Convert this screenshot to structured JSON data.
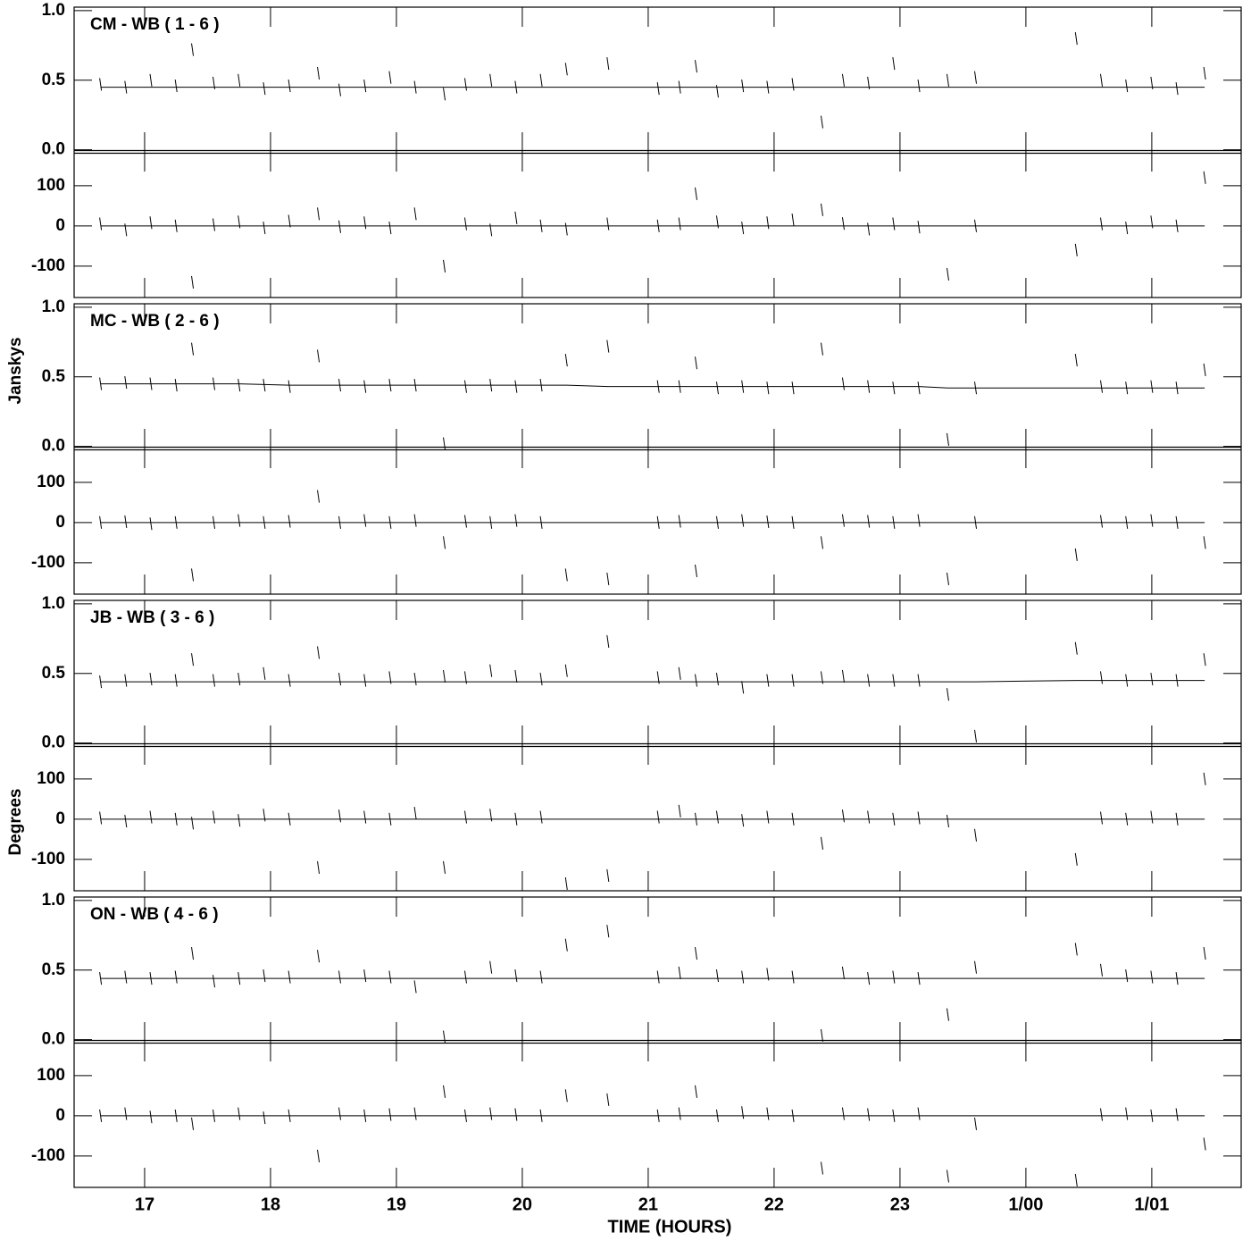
{
  "figure": {
    "xlabel": "TIME (HOURS)",
    "amp_label": "Janskys",
    "phase_label": "Degrees",
    "xlim": [
      16.44,
      25.71
    ],
    "xticks": [
      17,
      18,
      19,
      20,
      21,
      22,
      23,
      {
        "value": 24,
        "label": "1/00"
      },
      {
        "value": 25,
        "label": "1/01"
      }
    ],
    "amp_ylim": [
      -0.015,
      1.025
    ],
    "amp_yticks": [
      {
        "value": 0,
        "label": "0.0"
      },
      {
        "value": 0.5,
        "label": "0.5"
      },
      {
        "value": 1,
        "label": "1.0"
      }
    ],
    "phase_ylim": [
      -178,
      184
    ],
    "phase_yticks": [
      -100,
      0,
      100
    ]
  },
  "chart_data": [
    {
      "type": "line",
      "title": "CM - WB ( 1 - 6 )",
      "x": [
        16.65,
        16.85,
        17.05,
        17.25,
        17.38,
        17.55,
        17.75,
        17.95,
        18.15,
        18.38,
        18.55,
        18.75,
        18.95,
        19.15,
        19.38,
        19.55,
        19.75,
        19.95,
        20.15,
        20.35,
        20.68,
        21.08,
        21.25,
        21.38,
        21.55,
        21.75,
        21.95,
        22.15,
        22.38,
        22.55,
        22.75,
        22.95,
        23.15,
        23.38,
        23.6,
        24.4,
        24.6,
        24.8,
        25.0,
        25.2,
        25.42
      ],
      "amplitude": [
        0.47,
        0.45,
        0.5,
        0.46,
        0.72,
        0.48,
        0.5,
        0.44,
        0.46,
        0.55,
        0.43,
        0.46,
        0.52,
        0.45,
        0.4,
        0.47,
        0.5,
        0.45,
        0.5,
        0.58,
        0.62,
        0.44,
        0.45,
        0.6,
        0.42,
        0.46,
        0.45,
        0.47,
        0.2,
        0.5,
        0.48,
        0.62,
        0.46,
        0.5,
        0.52,
        0.8,
        0.5,
        0.46,
        0.48,
        0.44,
        0.55
      ],
      "amplitude_model": [
        0.45,
        0.45,
        0.45,
        0.45,
        0.45,
        0.45,
        0.45,
        0.45,
        0.45,
        0.45,
        0.45,
        0.45,
        0.45,
        0.45,
        0.45,
        0.45,
        0.45,
        0.45,
        0.45,
        0.45,
        0.45,
        0.45,
        0.45,
        0.45,
        0.45,
        0.45,
        0.45,
        0.45,
        0.45,
        0.45,
        0.45,
        0.45,
        0.45,
        0.45,
        0.45,
        0.45,
        0.45,
        0.45,
        0.45,
        0.45,
        0.45
      ],
      "phase": [
        5,
        -10,
        8,
        0,
        -140,
        3,
        10,
        -5,
        12,
        30,
        -2,
        8,
        -5,
        30,
        -100,
        5,
        -10,
        20,
        0,
        -8,
        5,
        0,
        5,
        80,
        10,
        -5,
        8,
        15,
        40,
        6,
        -8,
        5,
        -3,
        -120,
        0,
        -60,
        5,
        -5,
        10,
        0,
        120
      ],
      "phase_model": [
        0,
        0,
        0,
        0,
        0,
        0,
        0,
        0,
        0,
        0,
        0,
        0,
        0,
        0,
        0,
        0,
        0,
        0,
        0,
        0,
        0,
        0,
        0,
        0,
        0,
        0,
        0,
        0,
        0,
        0,
        0,
        0,
        0,
        0,
        0,
        0,
        0,
        0,
        0,
        0,
        0
      ]
    },
    {
      "type": "line",
      "title": "MC - WB ( 2 - 6 )",
      "x": [
        16.65,
        16.85,
        17.05,
        17.25,
        17.38,
        17.55,
        17.75,
        17.95,
        18.15,
        18.38,
        18.55,
        18.75,
        18.95,
        19.15,
        19.38,
        19.55,
        19.75,
        19.95,
        20.15,
        20.35,
        20.68,
        21.08,
        21.25,
        21.38,
        21.55,
        21.75,
        21.95,
        22.15,
        22.38,
        22.55,
        22.75,
        22.95,
        23.15,
        23.38,
        23.6,
        24.4,
        24.6,
        24.8,
        25.0,
        25.2,
        25.42
      ],
      "amplitude": [
        0.45,
        0.46,
        0.45,
        0.44,
        0.7,
        0.45,
        0.44,
        0.44,
        0.43,
        0.65,
        0.44,
        0.43,
        0.44,
        0.44,
        0.02,
        0.43,
        0.44,
        0.43,
        0.44,
        0.62,
        0.72,
        0.43,
        0.43,
        0.6,
        0.42,
        0.43,
        0.42,
        0.42,
        0.7,
        0.45,
        0.43,
        0.42,
        0.42,
        0.05,
        0.42,
        0.62,
        0.43,
        0.42,
        0.43,
        0.42,
        0.55
      ],
      "amplitude_model": [
        0.45,
        0.45,
        0.45,
        0.45,
        0.45,
        0.45,
        0.45,
        0.445,
        0.44,
        0.44,
        0.44,
        0.44,
        0.44,
        0.44,
        0.44,
        0.44,
        0.44,
        0.44,
        0.44,
        0.44,
        0.43,
        0.43,
        0.43,
        0.43,
        0.43,
        0.43,
        0.43,
        0.43,
        0.43,
        0.43,
        0.43,
        0.43,
        0.43,
        0.42,
        0.42,
        0.42,
        0.42,
        0.42,
        0.42,
        0.42,
        0.42
      ],
      "phase": [
        0,
        2,
        -3,
        0,
        -130,
        0,
        5,
        0,
        3,
        65,
        0,
        5,
        0,
        5,
        -50,
        3,
        0,
        5,
        0,
        -130,
        -140,
        0,
        3,
        -120,
        0,
        5,
        2,
        0,
        -50,
        5,
        3,
        0,
        5,
        -140,
        0,
        -80,
        3,
        0,
        5,
        0,
        -50
      ],
      "phase_model": [
        0,
        0,
        0,
        0,
        0,
        0,
        0,
        0,
        0,
        0,
        0,
        0,
        0,
        0,
        0,
        0,
        0,
        0,
        0,
        0,
        0,
        0,
        0,
        0,
        0,
        0,
        0,
        0,
        0,
        0,
        0,
        0,
        0,
        0,
        0,
        0,
        0,
        0,
        0,
        0,
        0
      ]
    },
    {
      "type": "line",
      "title": "JB - WB ( 3 - 6 )",
      "x": [
        16.65,
        16.85,
        17.05,
        17.25,
        17.38,
        17.55,
        17.75,
        17.95,
        18.15,
        18.38,
        18.55,
        18.75,
        18.95,
        19.15,
        19.38,
        19.55,
        19.75,
        19.95,
        20.15,
        20.35,
        20.68,
        21.08,
        21.25,
        21.38,
        21.55,
        21.75,
        21.95,
        22.15,
        22.38,
        22.55,
        22.75,
        22.95,
        23.15,
        23.38,
        23.6,
        24.4,
        24.6,
        24.8,
        25.0,
        25.2,
        25.42
      ],
      "amplitude": [
        0.44,
        0.45,
        0.46,
        0.45,
        0.6,
        0.45,
        0.46,
        0.5,
        0.45,
        0.65,
        0.46,
        0.45,
        0.47,
        0.46,
        0.48,
        0.47,
        0.52,
        0.48,
        0.46,
        0.52,
        0.73,
        0.47,
        0.5,
        0.45,
        0.46,
        0.4,
        0.45,
        0.45,
        0.47,
        0.48,
        0.45,
        0.45,
        0.45,
        0.35,
        0.05,
        0.68,
        0.47,
        0.45,
        0.46,
        0.45,
        0.6
      ],
      "amplitude_model": [
        0.44,
        0.44,
        0.44,
        0.44,
        0.44,
        0.44,
        0.44,
        0.44,
        0.44,
        0.44,
        0.44,
        0.44,
        0.44,
        0.44,
        0.44,
        0.44,
        0.44,
        0.44,
        0.44,
        0.44,
        0.44,
        0.44,
        0.44,
        0.44,
        0.44,
        0.44,
        0.44,
        0.44,
        0.44,
        0.44,
        0.44,
        0.44,
        0.44,
        0.44,
        0.44,
        0.45,
        0.45,
        0.45,
        0.45,
        0.45,
        0.45
      ],
      "phase": [
        3,
        -5,
        5,
        0,
        -10,
        5,
        -3,
        10,
        0,
        -120,
        8,
        5,
        0,
        15,
        -120,
        5,
        10,
        0,
        5,
        -160,
        -140,
        5,
        20,
        0,
        5,
        -3,
        5,
        0,
        -60,
        8,
        5,
        0,
        3,
        -5,
        -40,
        -100,
        3,
        0,
        5,
        0,
        100
      ],
      "phase_model": [
        0,
        0,
        0,
        0,
        0,
        0,
        0,
        0,
        0,
        0,
        0,
        0,
        0,
        0,
        0,
        0,
        0,
        0,
        0,
        0,
        0,
        0,
        0,
        0,
        0,
        0,
        0,
        0,
        0,
        0,
        0,
        0,
        0,
        0,
        0,
        0,
        0,
        0,
        0,
        0,
        0
      ]
    },
    {
      "type": "line",
      "title": "ON - WB ( 4 - 6 )",
      "x": [
        16.65,
        16.85,
        17.05,
        17.25,
        17.38,
        17.55,
        17.75,
        17.95,
        18.15,
        18.38,
        18.55,
        18.75,
        18.95,
        19.15,
        19.38,
        19.55,
        19.75,
        19.95,
        20.15,
        20.35,
        20.68,
        21.08,
        21.25,
        21.38,
        21.55,
        21.75,
        21.95,
        22.15,
        22.38,
        22.55,
        22.75,
        22.95,
        23.15,
        23.38,
        23.6,
        24.4,
        24.6,
        24.8,
        25.0,
        25.2,
        25.42
      ],
      "amplitude": [
        0.44,
        0.45,
        0.44,
        0.45,
        0.62,
        0.42,
        0.44,
        0.46,
        0.45,
        0.6,
        0.45,
        0.46,
        0.45,
        0.38,
        0.02,
        0.45,
        0.52,
        0.46,
        0.45,
        0.68,
        0.78,
        0.45,
        0.48,
        0.62,
        0.46,
        0.45,
        0.47,
        0.45,
        0.03,
        0.48,
        0.44,
        0.45,
        0.44,
        0.18,
        0.52,
        0.65,
        0.5,
        0.46,
        0.45,
        0.44,
        0.62
      ],
      "amplitude_model": [
        0.44,
        0.44,
        0.44,
        0.44,
        0.44,
        0.44,
        0.44,
        0.44,
        0.44,
        0.44,
        0.44,
        0.44,
        0.44,
        0.44,
        0.44,
        0.44,
        0.44,
        0.44,
        0.44,
        0.44,
        0.44,
        0.44,
        0.44,
        0.44,
        0.44,
        0.44,
        0.44,
        0.44,
        0.44,
        0.44,
        0.44,
        0.44,
        0.44,
        0.44,
        0.44,
        0.44,
        0.44,
        0.44,
        0.44,
        0.44,
        0.44
      ],
      "phase": [
        0,
        5,
        -3,
        0,
        -20,
        0,
        5,
        -5,
        0,
        -100,
        5,
        0,
        3,
        5,
        60,
        0,
        5,
        3,
        0,
        50,
        40,
        0,
        5,
        60,
        0,
        8,
        5,
        0,
        -130,
        5,
        3,
        0,
        5,
        -150,
        -20,
        -160,
        3,
        5,
        0,
        3,
        -70
      ],
      "phase_model": [
        0,
        0,
        0,
        0,
        0,
        0,
        0,
        0,
        0,
        0,
        0,
        0,
        0,
        0,
        0,
        0,
        0,
        0,
        0,
        0,
        0,
        0,
        0,
        0,
        0,
        0,
        0,
        0,
        0,
        0,
        0,
        0,
        0,
        0,
        0,
        0,
        0,
        0,
        0,
        0,
        0
      ]
    }
  ]
}
